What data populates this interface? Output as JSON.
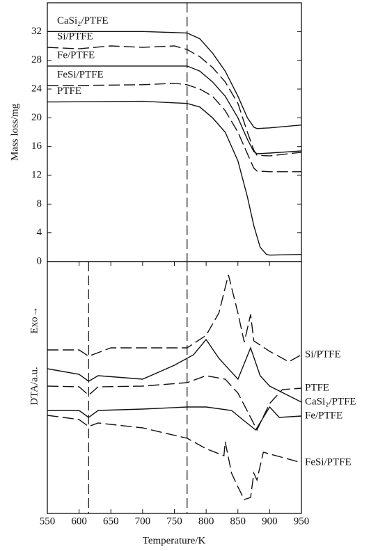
{
  "chart_data": [
    {
      "type": "line",
      "ylabel": "Mass loss/mg",
      "xlim": [
        550,
        950
      ],
      "ylim": [
        0,
        36
      ],
      "yticks": [
        0,
        4,
        8,
        12,
        16,
        20,
        24,
        28,
        32
      ],
      "vlines": [
        770
      ],
      "series": [
        {
          "name": "CaSi₂/PTFE",
          "color": "#111111",
          "dashed": false,
          "x": [
            550,
            700,
            770,
            790,
            810,
            830,
            850,
            865,
            875,
            880,
            900,
            950
          ],
          "values": [
            32,
            32,
            31.8,
            31,
            29,
            26.5,
            23,
            20,
            18.7,
            18.5,
            18.6,
            19
          ]
        },
        {
          "name": "Si/PTFE",
          "color": "#111111",
          "dashed": true,
          "x": [
            550,
            600,
            650,
            700,
            750,
            770,
            790,
            810,
            830,
            850,
            865,
            875,
            880,
            900,
            950
          ],
          "values": [
            29.8,
            29.6,
            30,
            29.8,
            30,
            29.5,
            28.5,
            27,
            25,
            22,
            18,
            15.5,
            14.8,
            14.7,
            15.2
          ]
        },
        {
          "name": "Fe/PTFE",
          "color": "#111111",
          "dashed": false,
          "x": [
            550,
            770,
            790,
            810,
            830,
            850,
            865,
            875,
            880,
            900,
            950
          ],
          "values": [
            27.2,
            27.2,
            26.5,
            25,
            23,
            20,
            17,
            15.3,
            15,
            15.1,
            15.4
          ]
        },
        {
          "name": "FeSi/PTFE",
          "color": "#111111",
          "dashed": true,
          "x": [
            550,
            600,
            700,
            750,
            770,
            790,
            810,
            830,
            850,
            865,
            875,
            880,
            900,
            950
          ],
          "values": [
            24.5,
            24.5,
            24.6,
            24.8,
            24.6,
            24,
            23,
            21,
            18,
            15,
            13,
            12.6,
            12.5,
            12.5
          ]
        },
        {
          "name": "PTFE",
          "color": "#111111",
          "dashed": false,
          "x": [
            550,
            700,
            770,
            790,
            810,
            830,
            850,
            865,
            875,
            885,
            895,
            900,
            950
          ],
          "values": [
            22.2,
            22.3,
            22,
            21.5,
            20,
            18,
            14,
            9,
            5,
            2,
            1,
            0.9,
            1
          ]
        }
      ]
    },
    {
      "type": "line",
      "ylabel": "DTA/a.u.",
      "annotation": "Exo→",
      "xlabel": "Temperature/K",
      "xlim": [
        550,
        950
      ],
      "ylim": [
        0,
        362
      ],
      "xticks": [
        550,
        600,
        650,
        700,
        750,
        800,
        850,
        900,
        950
      ],
      "vlines": [
        615,
        770
      ],
      "series": [
        {
          "name": "Si/PTFE",
          "color": "#111111",
          "dashed": true,
          "x": [
            550,
            600,
            615,
            650,
            770,
            800,
            820,
            835,
            850,
            860,
            870,
            875,
            900,
            930,
            950
          ],
          "values": [
            235,
            235,
            226,
            238,
            238,
            256,
            288,
            343,
            288,
            246,
            286,
            248,
            233,
            218,
            228
          ]
        },
        {
          "name": "PTFE",
          "color": "#111111",
          "dashed": true,
          "x": [
            550,
            600,
            615,
            630,
            700,
            770,
            800,
            830,
            850,
            870,
            880,
            900,
            920,
            950
          ],
          "values": [
            183,
            182,
            170,
            182,
            183,
            188,
            198,
            193,
            173,
            138,
            120,
            158,
            178,
            180
          ]
        },
        {
          "name": "CaSi₂/PTFE",
          "color": "#111111",
          "dashed": false,
          "x": [
            550,
            600,
            615,
            630,
            700,
            750,
            780,
            800,
            820,
            850,
            870,
            885,
            900,
            950
          ],
          "values": [
            208,
            200,
            190,
            198,
            193,
            213,
            228,
            250,
            223,
            193,
            238,
            198,
            183,
            160
          ]
        },
        {
          "name": "Fe/PTFE",
          "color": "#111111",
          "dashed": false,
          "x": [
            550,
            600,
            615,
            630,
            700,
            770,
            800,
            840,
            860,
            878,
            890,
            900,
            915,
            950
          ],
          "values": [
            148,
            148,
            138,
            148,
            150,
            153,
            153,
            148,
            133,
            120,
            138,
            153,
            138,
            140
          ]
        },
        {
          "name": "FeSi/PTFE",
          "color": "#111111",
          "dashed": true,
          "x": [
            550,
            600,
            615,
            630,
            700,
            770,
            800,
            828,
            830,
            840,
            850,
            860,
            870,
            875,
            880,
            890,
            950
          ],
          "values": [
            141,
            135,
            125,
            130,
            123,
            108,
            93,
            83,
            103,
            58,
            38,
            20,
            23,
            58,
            48,
            88,
            73
          ]
        }
      ]
    }
  ]
}
